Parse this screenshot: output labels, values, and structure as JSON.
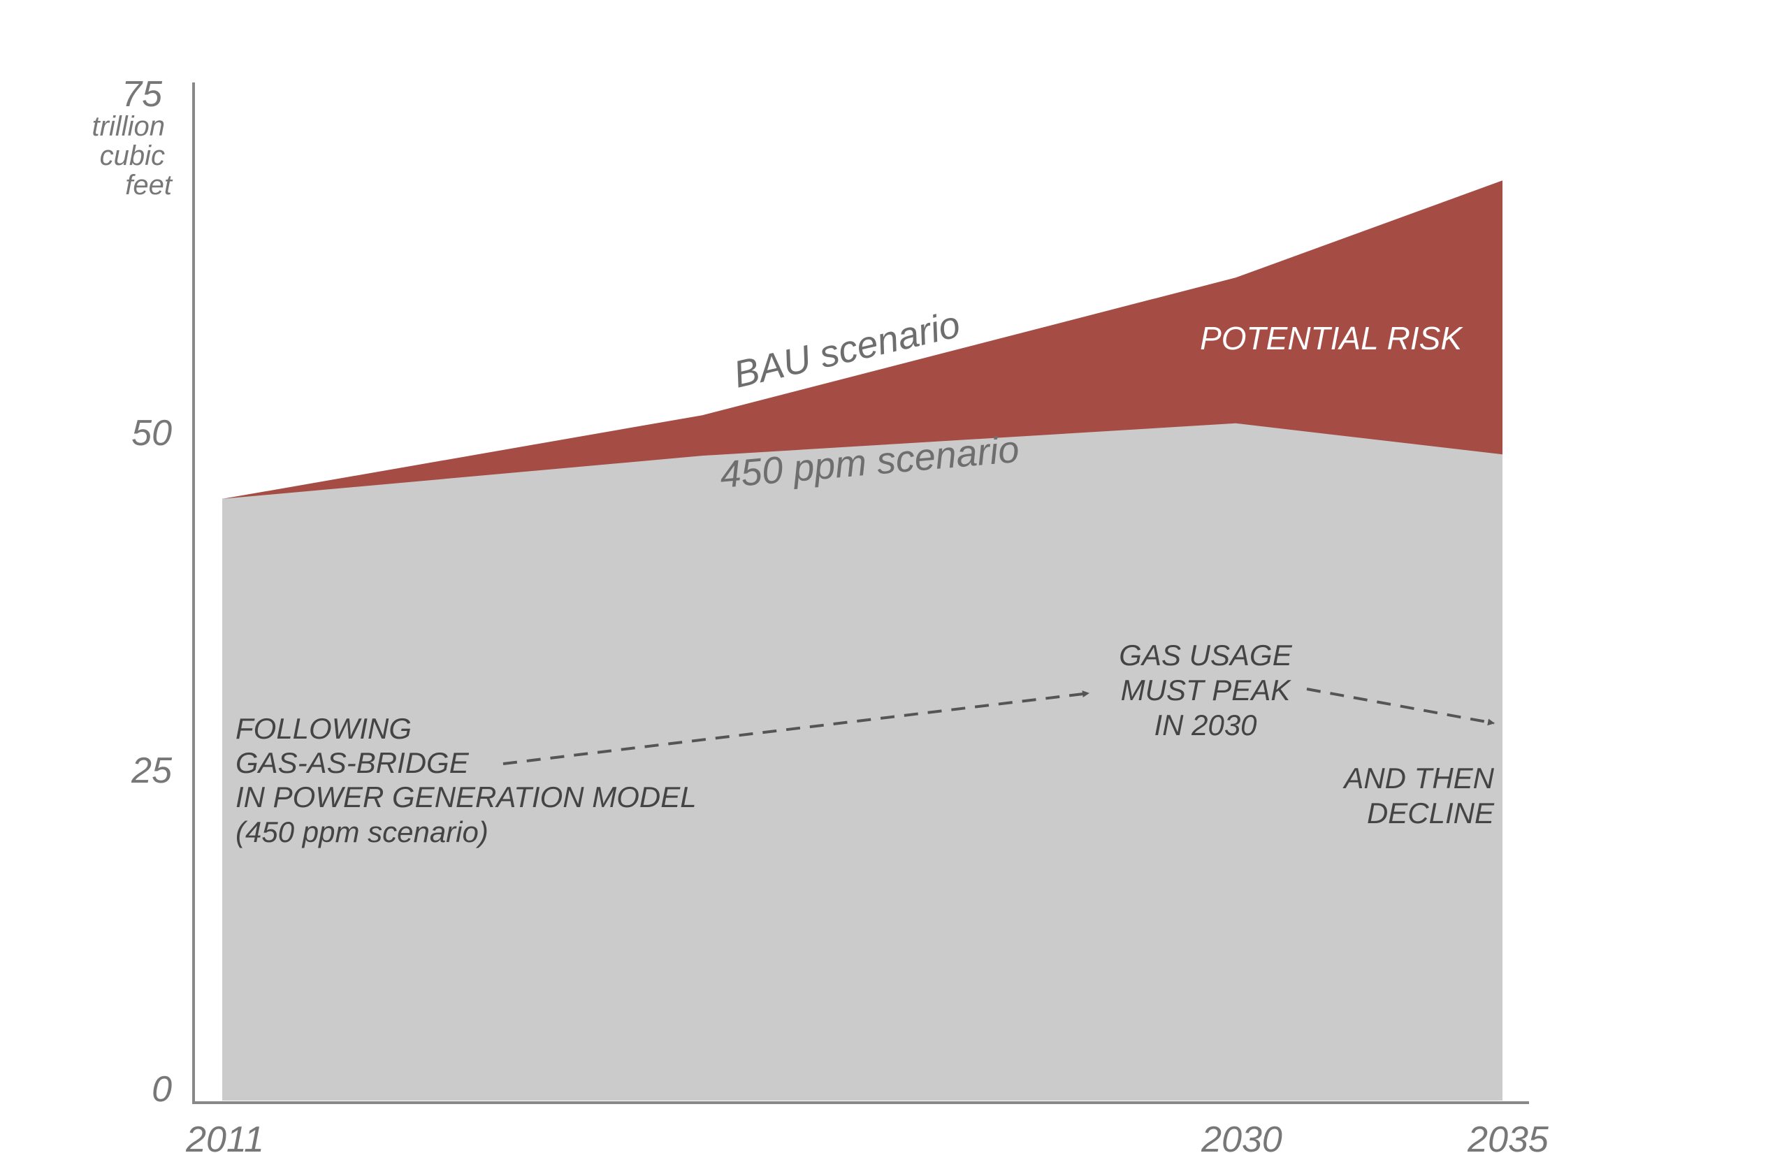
{
  "chart_data": {
    "type": "area",
    "x": [
      2011,
      2020,
      2030,
      2035
    ],
    "series": [
      {
        "name": "BAU scenario",
        "values": [
          44.6,
          50.8,
          61.0,
          68.2
        ]
      },
      {
        "name": "450 ppm scenario",
        "values": [
          44.6,
          47.8,
          50.2,
          47.9
        ]
      }
    ],
    "ylim": [
      0,
      75
    ],
    "y_ticks": [
      "0",
      "25",
      "50",
      "75"
    ],
    "x_ticks": [
      "2011",
      "2030",
      "2035"
    ],
    "y_unit": [
      "trillion",
      "cubic",
      "feet"
    ],
    "risk_label": "POTENTIAL RISK",
    "annotations": {
      "following": [
        "FOLLOWING",
        "GAS-AS-BRIDGE",
        "IN POWER GENERATION MODEL",
        "(450 ppm scenario)"
      ],
      "peak": [
        "GAS USAGE",
        "MUST PEAK",
        "IN 2030"
      ],
      "decline": [
        "AND THEN",
        "DECLINE"
      ]
    },
    "colors": {
      "bau_area": "#a54c45",
      "ppm_area": "#cbcbcb",
      "axis": "#888888",
      "arrow": "#555555"
    },
    "grid": false,
    "legend": "none"
  }
}
